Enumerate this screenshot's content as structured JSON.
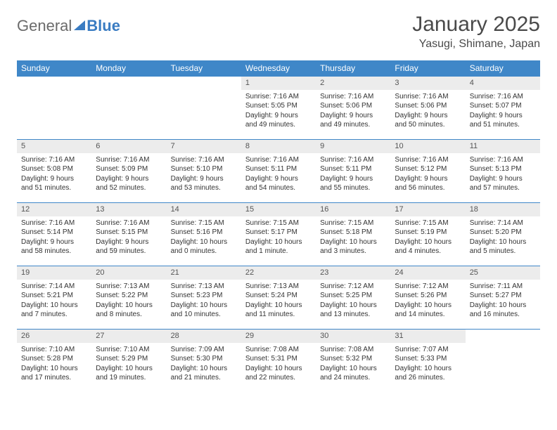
{
  "logo": {
    "word1": "General",
    "word2": "Blue"
  },
  "title": "January 2025",
  "location": "Yasugi, Shimane, Japan",
  "colors": {
    "header_bg": "#3f87c8",
    "header_text": "#ffffff",
    "daynum_bg": "#ececec",
    "text": "#333333",
    "rule": "#3f87c8",
    "logo_gray": "#6b6b6b",
    "logo_blue": "#3a7cc2"
  },
  "day_names": [
    "Sunday",
    "Monday",
    "Tuesday",
    "Wednesday",
    "Thursday",
    "Friday",
    "Saturday"
  ],
  "weeks": [
    [
      null,
      null,
      null,
      {
        "n": "1",
        "sunrise": "7:16 AM",
        "sunset": "5:05 PM",
        "daylight": "9 hours and 49 minutes."
      },
      {
        "n": "2",
        "sunrise": "7:16 AM",
        "sunset": "5:06 PM",
        "daylight": "9 hours and 49 minutes."
      },
      {
        "n": "3",
        "sunrise": "7:16 AM",
        "sunset": "5:06 PM",
        "daylight": "9 hours and 50 minutes."
      },
      {
        "n": "4",
        "sunrise": "7:16 AM",
        "sunset": "5:07 PM",
        "daylight": "9 hours and 51 minutes."
      }
    ],
    [
      {
        "n": "5",
        "sunrise": "7:16 AM",
        "sunset": "5:08 PM",
        "daylight": "9 hours and 51 minutes."
      },
      {
        "n": "6",
        "sunrise": "7:16 AM",
        "sunset": "5:09 PM",
        "daylight": "9 hours and 52 minutes."
      },
      {
        "n": "7",
        "sunrise": "7:16 AM",
        "sunset": "5:10 PM",
        "daylight": "9 hours and 53 minutes."
      },
      {
        "n": "8",
        "sunrise": "7:16 AM",
        "sunset": "5:11 PM",
        "daylight": "9 hours and 54 minutes."
      },
      {
        "n": "9",
        "sunrise": "7:16 AM",
        "sunset": "5:11 PM",
        "daylight": "9 hours and 55 minutes."
      },
      {
        "n": "10",
        "sunrise": "7:16 AM",
        "sunset": "5:12 PM",
        "daylight": "9 hours and 56 minutes."
      },
      {
        "n": "11",
        "sunrise": "7:16 AM",
        "sunset": "5:13 PM",
        "daylight": "9 hours and 57 minutes."
      }
    ],
    [
      {
        "n": "12",
        "sunrise": "7:16 AM",
        "sunset": "5:14 PM",
        "daylight": "9 hours and 58 minutes."
      },
      {
        "n": "13",
        "sunrise": "7:16 AM",
        "sunset": "5:15 PM",
        "daylight": "9 hours and 59 minutes."
      },
      {
        "n": "14",
        "sunrise": "7:15 AM",
        "sunset": "5:16 PM",
        "daylight": "10 hours and 0 minutes."
      },
      {
        "n": "15",
        "sunrise": "7:15 AM",
        "sunset": "5:17 PM",
        "daylight": "10 hours and 1 minute."
      },
      {
        "n": "16",
        "sunrise": "7:15 AM",
        "sunset": "5:18 PM",
        "daylight": "10 hours and 3 minutes."
      },
      {
        "n": "17",
        "sunrise": "7:15 AM",
        "sunset": "5:19 PM",
        "daylight": "10 hours and 4 minutes."
      },
      {
        "n": "18",
        "sunrise": "7:14 AM",
        "sunset": "5:20 PM",
        "daylight": "10 hours and 5 minutes."
      }
    ],
    [
      {
        "n": "19",
        "sunrise": "7:14 AM",
        "sunset": "5:21 PM",
        "daylight": "10 hours and 7 minutes."
      },
      {
        "n": "20",
        "sunrise": "7:13 AM",
        "sunset": "5:22 PM",
        "daylight": "10 hours and 8 minutes."
      },
      {
        "n": "21",
        "sunrise": "7:13 AM",
        "sunset": "5:23 PM",
        "daylight": "10 hours and 10 minutes."
      },
      {
        "n": "22",
        "sunrise": "7:13 AM",
        "sunset": "5:24 PM",
        "daylight": "10 hours and 11 minutes."
      },
      {
        "n": "23",
        "sunrise": "7:12 AM",
        "sunset": "5:25 PM",
        "daylight": "10 hours and 13 minutes."
      },
      {
        "n": "24",
        "sunrise": "7:12 AM",
        "sunset": "5:26 PM",
        "daylight": "10 hours and 14 minutes."
      },
      {
        "n": "25",
        "sunrise": "7:11 AM",
        "sunset": "5:27 PM",
        "daylight": "10 hours and 16 minutes."
      }
    ],
    [
      {
        "n": "26",
        "sunrise": "7:10 AM",
        "sunset": "5:28 PM",
        "daylight": "10 hours and 17 minutes."
      },
      {
        "n": "27",
        "sunrise": "7:10 AM",
        "sunset": "5:29 PM",
        "daylight": "10 hours and 19 minutes."
      },
      {
        "n": "28",
        "sunrise": "7:09 AM",
        "sunset": "5:30 PM",
        "daylight": "10 hours and 21 minutes."
      },
      {
        "n": "29",
        "sunrise": "7:08 AM",
        "sunset": "5:31 PM",
        "daylight": "10 hours and 22 minutes."
      },
      {
        "n": "30",
        "sunrise": "7:08 AM",
        "sunset": "5:32 PM",
        "daylight": "10 hours and 24 minutes."
      },
      {
        "n": "31",
        "sunrise": "7:07 AM",
        "sunset": "5:33 PM",
        "daylight": "10 hours and 26 minutes."
      },
      null
    ]
  ],
  "labels": {
    "sunrise": "Sunrise: ",
    "sunset": "Sunset: ",
    "daylight": "Daylight: "
  }
}
